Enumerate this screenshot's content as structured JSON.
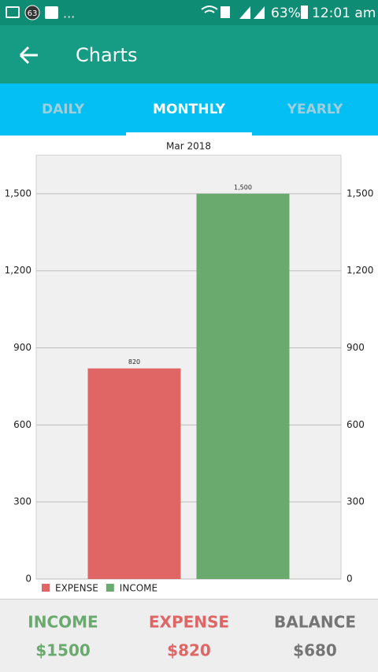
{
  "status_bar": {
    "notification_count": "63",
    "more": "...",
    "battery": "63%",
    "time": "12:01 am"
  },
  "app_bar": {
    "title": "Charts"
  },
  "tabs": [
    "DAILY",
    "MONTHLY",
    "YEARLY"
  ],
  "chart_data": {
    "type": "bar",
    "title": "Mar 2018",
    "categories": [
      "Mar 2018"
    ],
    "series": [
      {
        "name": "EXPENSE",
        "color": "#e06666",
        "values": [
          820
        ],
        "value_labels": [
          "820"
        ]
      },
      {
        "name": "INCOME",
        "color": "#6aaa6e",
        "values": [
          1500
        ],
        "value_labels": [
          "1,500"
        ]
      }
    ],
    "ylim": [
      0,
      1650
    ],
    "yticks": [
      0,
      300,
      600,
      900,
      {
        "value": 1200,
        "label": "1,200"
      },
      {
        "value": 1500,
        "label": "1,500"
      }
    ],
    "grid": true,
    "legend": "bottom-left"
  },
  "summary": [
    {
      "label": "INCOME",
      "value": "$1500",
      "color": "#6aaa6e"
    },
    {
      "label": "EXPENSE",
      "value": "$820",
      "color": "#e06666"
    },
    {
      "label": "BALANCE",
      "value": "$680",
      "color": "#757575"
    }
  ]
}
